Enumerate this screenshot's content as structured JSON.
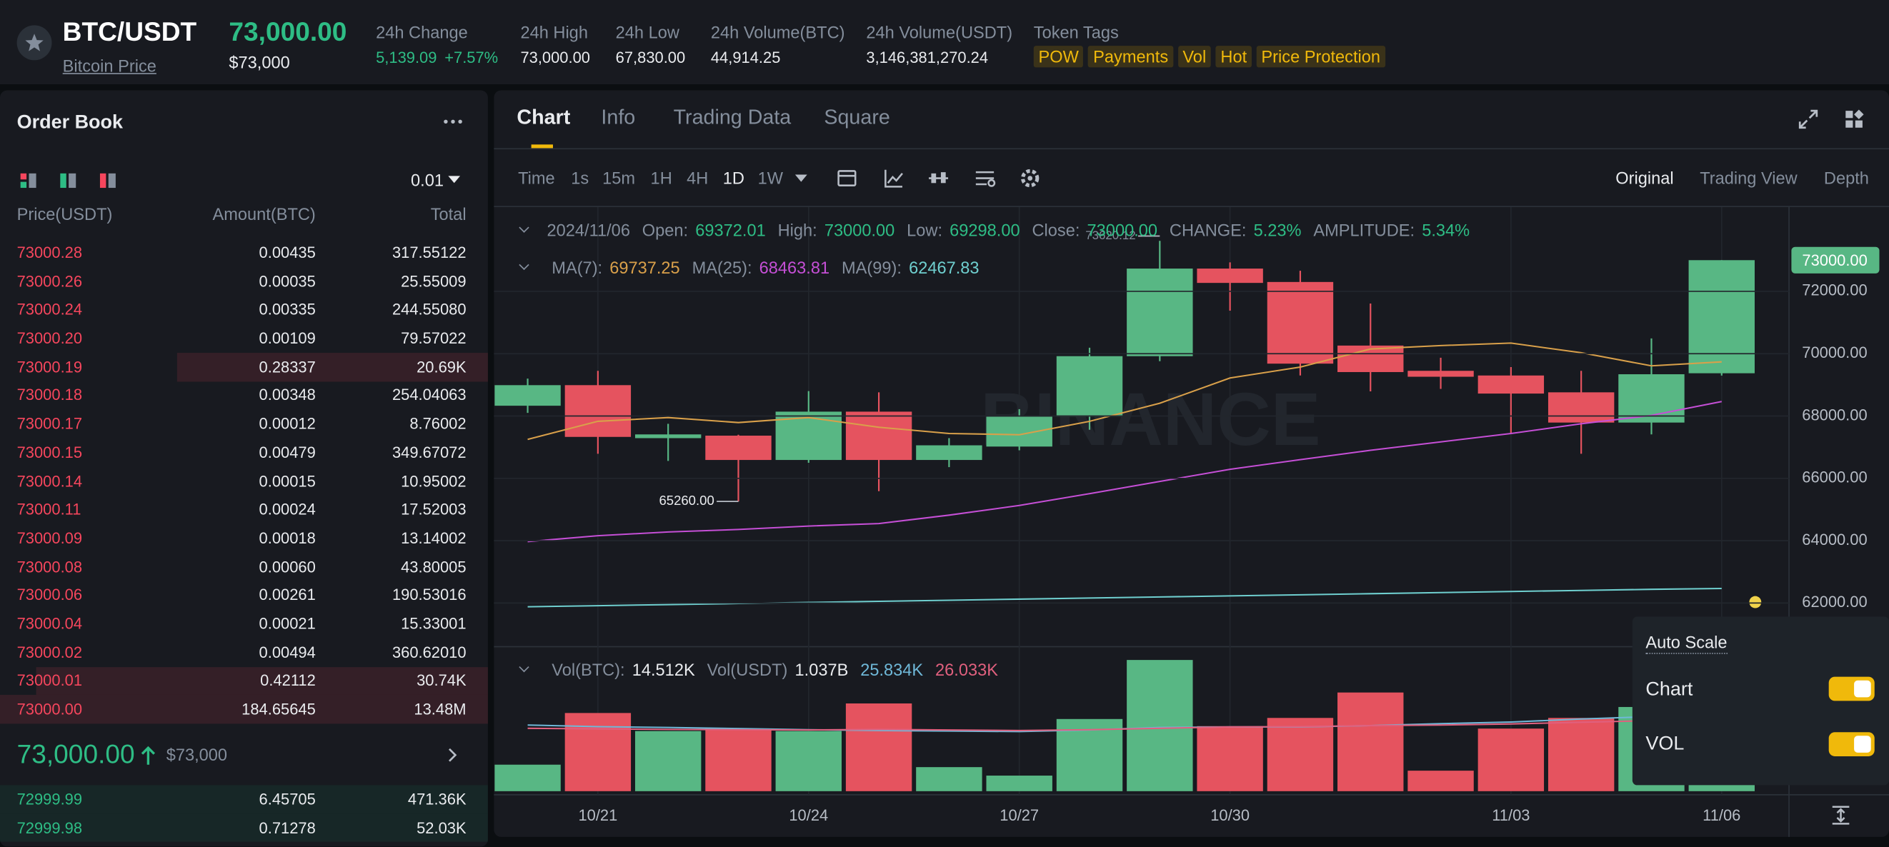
{
  "header": {
    "symbol": "BTC/USDT",
    "link": "Bitcoin Price",
    "price": "73,000.00",
    "price_usd": "$73,000",
    "stats": [
      {
        "label": "24h Change",
        "value": "5,139.09",
        "change": "+7.57%"
      },
      {
        "label": "24h High",
        "value": "73,000.00"
      },
      {
        "label": "24h Low",
        "value": "67,830.00"
      },
      {
        "label": "24h Volume(BTC)",
        "value": "44,914.25"
      },
      {
        "label": "24h Volume(USDT)",
        "value": "3,146,381,270.24"
      }
    ],
    "tags_label": "Token Tags",
    "tags": [
      "POW",
      "Payments",
      "Vol",
      "Hot",
      "Price Protection"
    ]
  },
  "order_book": {
    "title": "Order Book",
    "precision": "0.01",
    "columns": [
      "Price(USDT)",
      "Amount(BTC)",
      "Total"
    ],
    "asks": [
      [
        "73000.28",
        "0.00435",
        "317.55122"
      ],
      [
        "73000.26",
        "0.00035",
        "25.55009"
      ],
      [
        "73000.24",
        "0.00335",
        "244.55080"
      ],
      [
        "73000.20",
        "0.00109",
        "79.57022"
      ],
      [
        "73000.19",
        "0.28337",
        "20.69K"
      ],
      [
        "73000.18",
        "0.00348",
        "254.04063"
      ],
      [
        "73000.17",
        "0.00012",
        "8.76002"
      ],
      [
        "73000.15",
        "0.00479",
        "349.67072"
      ],
      [
        "73000.14",
        "0.00015",
        "10.95002"
      ],
      [
        "73000.11",
        "0.00024",
        "17.52003"
      ],
      [
        "73000.09",
        "0.00018",
        "13.14002"
      ],
      [
        "73000.08",
        "0.00060",
        "43.80005"
      ],
      [
        "73000.06",
        "0.00261",
        "190.53016"
      ],
      [
        "73000.04",
        "0.00021",
        "15.33001"
      ],
      [
        "73000.02",
        "0.00494",
        "360.62010"
      ],
      [
        "73000.01",
        "0.42112",
        "30.74K"
      ],
      [
        "73000.00",
        "184.65645",
        "13.48M"
      ]
    ],
    "last_price": "73,000.00",
    "last_price_usd": "$73,000",
    "bids": [
      [
        "72999.99",
        "6.45705",
        "471.36K"
      ],
      [
        "72999.98",
        "0.71278",
        "52.03K"
      ]
    ]
  },
  "chart_panel": {
    "tabs": [
      "Chart",
      "Info",
      "Trading Data",
      "Square"
    ],
    "intervals": [
      "Time",
      "1s",
      "15m",
      "1H",
      "4H",
      "1D",
      "1W"
    ],
    "views": [
      "Original",
      "Trading View",
      "Depth"
    ],
    "ohlc_info": {
      "date": "2024/11/06",
      "items": [
        {
          "label": "Open:",
          "value": "69372.01"
        },
        {
          "label": "High:",
          "value": "73000.00"
        },
        {
          "label": "Low:",
          "value": "69298.00"
        },
        {
          "label": "Close:",
          "value": "73000.00"
        },
        {
          "label": "CHANGE:",
          "value": "5.23%"
        },
        {
          "label": "AMPLITUDE:",
          "value": "5.34%"
        }
      ]
    },
    "vol_info": [
      {
        "label": "Vol(BTC):",
        "value": "14.512K"
      },
      {
        "label": "Vol(USDT)",
        "value": "1.037B"
      }
    ],
    "watermark": "BINANCE",
    "auto_scale": {
      "title": "Auto Scale",
      "options": [
        "Chart",
        "VOL"
      ]
    }
  },
  "chart_data": {
    "type": "candlestick",
    "up_color": "#58b784",
    "down_color": "#e5535f",
    "categories": [
      null,
      "10/21",
      null,
      null,
      "10/24",
      null,
      null,
      "10/27",
      null,
      null,
      "10/30",
      null,
      null,
      null,
      "11/03",
      null,
      null,
      "11/06"
    ],
    "open": [
      68330,
      68990,
      67290,
      67370,
      66590,
      68140,
      66590,
      67020,
      67980,
      69920,
      72730,
      72300,
      70260,
      69450,
      69300,
      68760,
      67790,
      69372.01
    ],
    "high": [
      69200,
      69450,
      67750,
      67400,
      68800,
      68760,
      67290,
      68220,
      70190,
      73620.12,
      72930,
      72660,
      71610,
      69870,
      69570,
      69450,
      70490,
      73000
    ],
    "low": [
      68100,
      66790,
      66560,
      65260,
      66500,
      65590,
      66360,
      66900,
      67560,
      69760,
      71380,
      69300,
      68790,
      68870,
      67440,
      66790,
      67410,
      69298
    ],
    "close": [
      68990,
      67330,
      67410,
      66590,
      68140,
      66590,
      67060,
      67980,
      69920,
      72730,
      72270,
      69680,
      69410,
      69260,
      68720,
      67790,
      69340,
      73000
    ],
    "ylim": [
      60600,
      74740
    ],
    "yticks": [
      {
        "value": 62000,
        "label": "62000.00"
      },
      {
        "value": 64000,
        "label": "64000.00"
      },
      {
        "value": 66000,
        "label": "66000.00"
      },
      {
        "value": 68000,
        "label": "68000.00"
      },
      {
        "value": 70000,
        "label": "70000.00"
      },
      {
        "value": 72000,
        "label": "72000.00"
      }
    ],
    "last_price": {
      "value": 73000,
      "label": "73000.00"
    },
    "annotations": [
      {
        "value": 73620.12,
        "label": "73620.12"
      },
      {
        "value": 65260,
        "label": "65260.00"
      }
    ],
    "series": [
      {
        "name": "MA(7):",
        "current": "69737.25",
        "color": "#d9a04a",
        "values": [
          67250,
          67830,
          67950,
          67790,
          67950,
          67640,
          67440,
          67400,
          67830,
          68410,
          69220,
          69570,
          70150,
          70260,
          70340,
          70030,
          69610,
          69737.25
        ]
      },
      {
        "name": "MA(25):",
        "current": "68463.81",
        "color": "#c54fd6",
        "values": [
          63970,
          64160,
          64280,
          64360,
          64470,
          64550,
          64820,
          65130,
          65510,
          65900,
          66290,
          66600,
          66900,
          67170,
          67440,
          67750,
          68020,
          68463.81
        ]
      },
      {
        "name": "MA(99):",
        "current": "62467.83",
        "color": "#6fcfcf",
        "values": [
          61880,
          61915,
          61950,
          61985,
          62020,
          62055,
          62090,
          62125,
          62160,
          62195,
          62230,
          62265,
          62300,
          62335,
          62370,
          62405,
          62440,
          62467.83
        ]
      }
    ],
    "volume": {
      "values": [
        9.7,
        28.6,
        22,
        22.9,
        22,
        32.1,
        8.8,
        5.7,
        26.4,
        48,
        23.8,
        26.8,
        36.1,
        7.5,
        22.9,
        26.8,
        30.8,
        14.512
      ],
      "ylim": [
        0,
        50
      ],
      "series": [
        {
          "current": "25.834K",
          "color": "#6fb8d8",
          "values": [
            24.2,
            23.6,
            23.3,
            22.9,
            22.5,
            22.2,
            22.0,
            21.8,
            22.4,
            23.3,
            23.5,
            23.5,
            24.0,
            24.7,
            25.3,
            26.4,
            27.3,
            25.834
          ]
        },
        {
          "current": "26.033K",
          "color": "#e0607e",
          "values": [
            23.0,
            22.8,
            22.6,
            22.5,
            22.4,
            22.6,
            22.4,
            22.2,
            22.5,
            23.0,
            23.5,
            23.6,
            24.0,
            24.2,
            24.6,
            25.2,
            25.8,
            26.033
          ]
        }
      ]
    }
  }
}
